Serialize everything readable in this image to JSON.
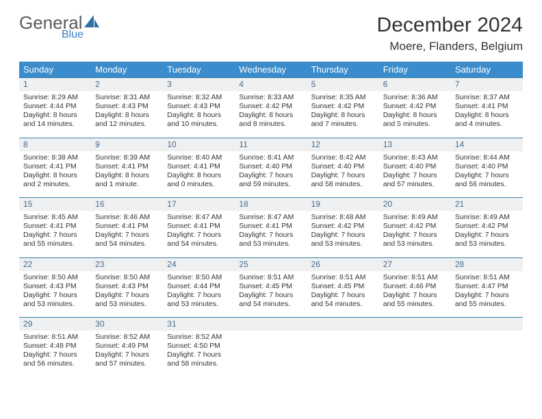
{
  "brand": {
    "part1": "General",
    "part2": "Blue",
    "sail_color": "#2f6fa8"
  },
  "title": "December 2024",
  "location": "Moere, Flanders, Belgium",
  "colors": {
    "header_bg": "#3a8ccc",
    "header_text": "#ffffff",
    "daynum_bg": "#eef0f2",
    "daynum_text": "#4a6a88",
    "row_border": "#3a7fa8",
    "body_text": "#333333"
  },
  "weekdays": [
    "Sunday",
    "Monday",
    "Tuesday",
    "Wednesday",
    "Thursday",
    "Friday",
    "Saturday"
  ],
  "weeks": [
    [
      {
        "n": "1",
        "sr": "Sunrise: 8:29 AM",
        "ss": "Sunset: 4:44 PM",
        "d1": "Daylight: 8 hours",
        "d2": "and 14 minutes."
      },
      {
        "n": "2",
        "sr": "Sunrise: 8:31 AM",
        "ss": "Sunset: 4:43 PM",
        "d1": "Daylight: 8 hours",
        "d2": "and 12 minutes."
      },
      {
        "n": "3",
        "sr": "Sunrise: 8:32 AM",
        "ss": "Sunset: 4:43 PM",
        "d1": "Daylight: 8 hours",
        "d2": "and 10 minutes."
      },
      {
        "n": "4",
        "sr": "Sunrise: 8:33 AM",
        "ss": "Sunset: 4:42 PM",
        "d1": "Daylight: 8 hours",
        "d2": "and 8 minutes."
      },
      {
        "n": "5",
        "sr": "Sunrise: 8:35 AM",
        "ss": "Sunset: 4:42 PM",
        "d1": "Daylight: 8 hours",
        "d2": "and 7 minutes."
      },
      {
        "n": "6",
        "sr": "Sunrise: 8:36 AM",
        "ss": "Sunset: 4:42 PM",
        "d1": "Daylight: 8 hours",
        "d2": "and 5 minutes."
      },
      {
        "n": "7",
        "sr": "Sunrise: 8:37 AM",
        "ss": "Sunset: 4:41 PM",
        "d1": "Daylight: 8 hours",
        "d2": "and 4 minutes."
      }
    ],
    [
      {
        "n": "8",
        "sr": "Sunrise: 8:38 AM",
        "ss": "Sunset: 4:41 PM",
        "d1": "Daylight: 8 hours",
        "d2": "and 2 minutes."
      },
      {
        "n": "9",
        "sr": "Sunrise: 8:39 AM",
        "ss": "Sunset: 4:41 PM",
        "d1": "Daylight: 8 hours",
        "d2": "and 1 minute."
      },
      {
        "n": "10",
        "sr": "Sunrise: 8:40 AM",
        "ss": "Sunset: 4:41 PM",
        "d1": "Daylight: 8 hours",
        "d2": "and 0 minutes."
      },
      {
        "n": "11",
        "sr": "Sunrise: 8:41 AM",
        "ss": "Sunset: 4:40 PM",
        "d1": "Daylight: 7 hours",
        "d2": "and 59 minutes."
      },
      {
        "n": "12",
        "sr": "Sunrise: 8:42 AM",
        "ss": "Sunset: 4:40 PM",
        "d1": "Daylight: 7 hours",
        "d2": "and 58 minutes."
      },
      {
        "n": "13",
        "sr": "Sunrise: 8:43 AM",
        "ss": "Sunset: 4:40 PM",
        "d1": "Daylight: 7 hours",
        "d2": "and 57 minutes."
      },
      {
        "n": "14",
        "sr": "Sunrise: 8:44 AM",
        "ss": "Sunset: 4:40 PM",
        "d1": "Daylight: 7 hours",
        "d2": "and 56 minutes."
      }
    ],
    [
      {
        "n": "15",
        "sr": "Sunrise: 8:45 AM",
        "ss": "Sunset: 4:41 PM",
        "d1": "Daylight: 7 hours",
        "d2": "and 55 minutes."
      },
      {
        "n": "16",
        "sr": "Sunrise: 8:46 AM",
        "ss": "Sunset: 4:41 PM",
        "d1": "Daylight: 7 hours",
        "d2": "and 54 minutes."
      },
      {
        "n": "17",
        "sr": "Sunrise: 8:47 AM",
        "ss": "Sunset: 4:41 PM",
        "d1": "Daylight: 7 hours",
        "d2": "and 54 minutes."
      },
      {
        "n": "18",
        "sr": "Sunrise: 8:47 AM",
        "ss": "Sunset: 4:41 PM",
        "d1": "Daylight: 7 hours",
        "d2": "and 53 minutes."
      },
      {
        "n": "19",
        "sr": "Sunrise: 8:48 AM",
        "ss": "Sunset: 4:42 PM",
        "d1": "Daylight: 7 hours",
        "d2": "and 53 minutes."
      },
      {
        "n": "20",
        "sr": "Sunrise: 8:49 AM",
        "ss": "Sunset: 4:42 PM",
        "d1": "Daylight: 7 hours",
        "d2": "and 53 minutes."
      },
      {
        "n": "21",
        "sr": "Sunrise: 8:49 AM",
        "ss": "Sunset: 4:42 PM",
        "d1": "Daylight: 7 hours",
        "d2": "and 53 minutes."
      }
    ],
    [
      {
        "n": "22",
        "sr": "Sunrise: 8:50 AM",
        "ss": "Sunset: 4:43 PM",
        "d1": "Daylight: 7 hours",
        "d2": "and 53 minutes."
      },
      {
        "n": "23",
        "sr": "Sunrise: 8:50 AM",
        "ss": "Sunset: 4:43 PM",
        "d1": "Daylight: 7 hours",
        "d2": "and 53 minutes."
      },
      {
        "n": "24",
        "sr": "Sunrise: 8:50 AM",
        "ss": "Sunset: 4:44 PM",
        "d1": "Daylight: 7 hours",
        "d2": "and 53 minutes."
      },
      {
        "n": "25",
        "sr": "Sunrise: 8:51 AM",
        "ss": "Sunset: 4:45 PM",
        "d1": "Daylight: 7 hours",
        "d2": "and 54 minutes."
      },
      {
        "n": "26",
        "sr": "Sunrise: 8:51 AM",
        "ss": "Sunset: 4:45 PM",
        "d1": "Daylight: 7 hours",
        "d2": "and 54 minutes."
      },
      {
        "n": "27",
        "sr": "Sunrise: 8:51 AM",
        "ss": "Sunset: 4:46 PM",
        "d1": "Daylight: 7 hours",
        "d2": "and 55 minutes."
      },
      {
        "n": "28",
        "sr": "Sunrise: 8:51 AM",
        "ss": "Sunset: 4:47 PM",
        "d1": "Daylight: 7 hours",
        "d2": "and 55 minutes."
      }
    ],
    [
      {
        "n": "29",
        "sr": "Sunrise: 8:51 AM",
        "ss": "Sunset: 4:48 PM",
        "d1": "Daylight: 7 hours",
        "d2": "and 56 minutes."
      },
      {
        "n": "30",
        "sr": "Sunrise: 8:52 AM",
        "ss": "Sunset: 4:49 PM",
        "d1": "Daylight: 7 hours",
        "d2": "and 57 minutes."
      },
      {
        "n": "31",
        "sr": "Sunrise: 8:52 AM",
        "ss": "Sunset: 4:50 PM",
        "d1": "Daylight: 7 hours",
        "d2": "and 58 minutes."
      },
      null,
      null,
      null,
      null
    ]
  ]
}
